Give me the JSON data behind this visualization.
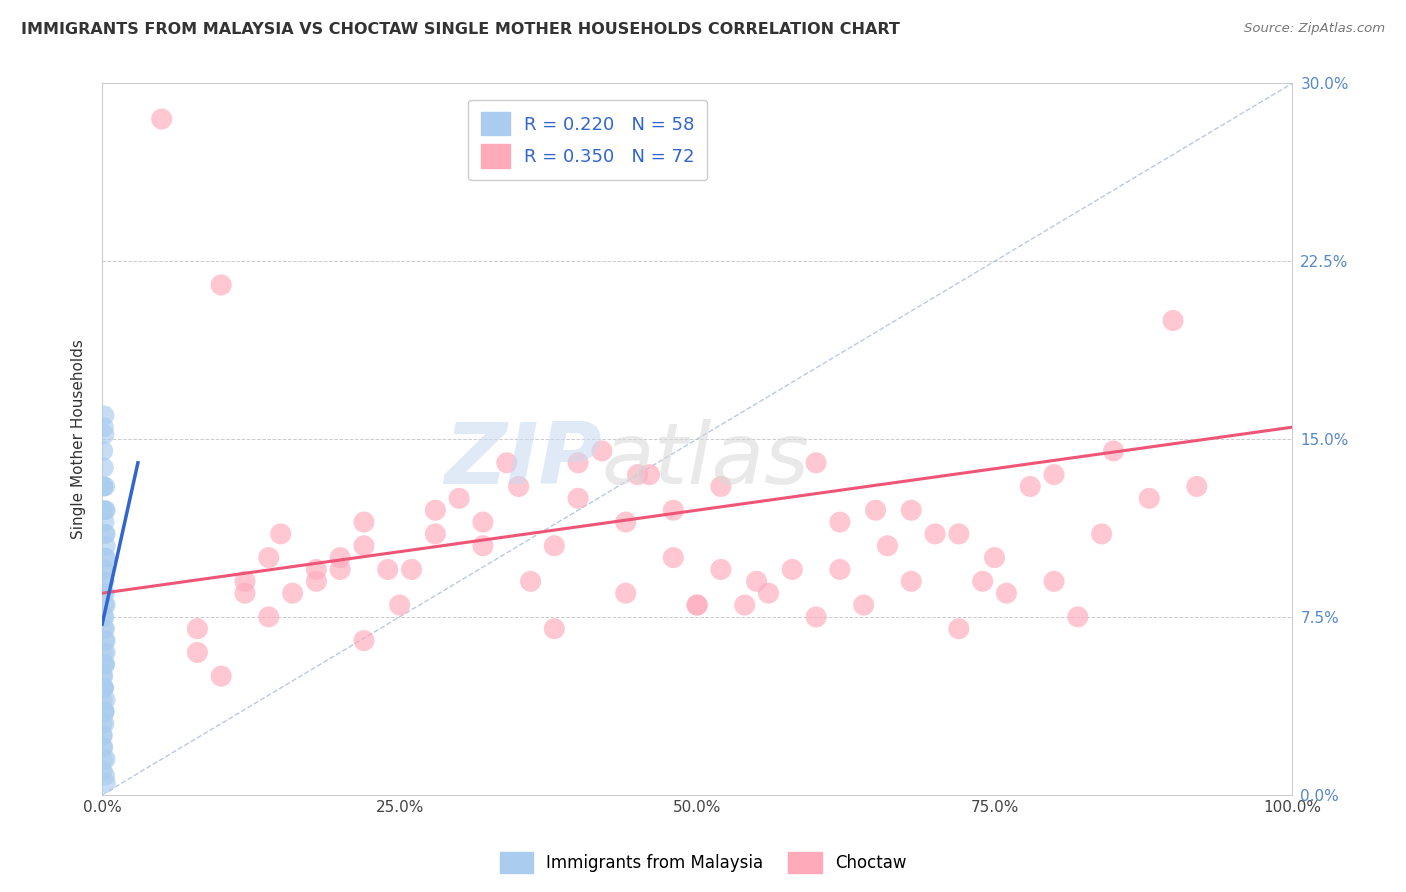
{
  "title": "IMMIGRANTS FROM MALAYSIA VS CHOCTAW SINGLE MOTHER HOUSEHOLDS CORRELATION CHART",
  "source": "Source: ZipAtlas.com",
  "xlabel": "",
  "ylabel": "Single Mother Households",
  "xlim": [
    0,
    100
  ],
  "ylim": [
    0,
    30
  ],
  "yticks": [
    0,
    7.5,
    15.0,
    22.5,
    30.0
  ],
  "xticks": [
    0,
    25,
    50,
    75,
    100
  ],
  "blue_R": 0.22,
  "blue_N": 58,
  "pink_R": 0.35,
  "pink_N": 72,
  "blue_label": "Immigrants from Malaysia",
  "pink_label": "Choctaw",
  "blue_color": "#aaccee",
  "pink_color": "#ffaabb",
  "blue_line_color": "#3366cc",
  "pink_line_color": "#ee5577",
  "watermark_zip": "ZIP",
  "watermark_atlas": "atlas",
  "blue_scatter_x": [
    0.1,
    0.15,
    0.2,
    0.25,
    0.3,
    0.1,
    0.2,
    0.15,
    0.3,
    0.25,
    0.1,
    0.2,
    0.15,
    0.25,
    0.3,
    0.05,
    0.1,
    0.2,
    0.15,
    0.25,
    0.3,
    0.05,
    0.1,
    0.2,
    0.15,
    0.25,
    0.3,
    0.05,
    0.1,
    0.2,
    0.15,
    0.25,
    0.3,
    0.05,
    0.1,
    0.2,
    0.15,
    0.25,
    0.3,
    0.05,
    0.1,
    0.2,
    0.15,
    0.25,
    0.3,
    0.05,
    0.1,
    0.2,
    0.15,
    0.25,
    0.3,
    0.05,
    0.1,
    0.2,
    0.15,
    0.25,
    0.3,
    0.05
  ],
  "blue_scatter_y": [
    14.5,
    13.8,
    15.2,
    12.0,
    10.5,
    13.0,
    11.5,
    9.5,
    10.0,
    11.0,
    8.5,
    9.0,
    7.0,
    6.5,
    8.0,
    5.0,
    4.5,
    3.5,
    6.0,
    5.5,
    4.0,
    3.0,
    7.5,
    16.0,
    15.5,
    13.0,
    12.0,
    2.5,
    5.5,
    8.0,
    9.5,
    7.0,
    6.0,
    4.0,
    5.0,
    3.0,
    4.5,
    8.5,
    6.5,
    2.0,
    1.5,
    7.5,
    9.0,
    10.0,
    11.0,
    12.0,
    13.0,
    3.5,
    4.5,
    5.5,
    0.5,
    1.0,
    2.0,
    3.5,
    4.5,
    0.8,
    1.5,
    2.5
  ],
  "pink_scatter_x": [
    5,
    8,
    12,
    18,
    22,
    15,
    28,
    32,
    10,
    20,
    25,
    35,
    40,
    14,
    18,
    22,
    30,
    45,
    50,
    55,
    60,
    65,
    70,
    75,
    80,
    42,
    48,
    52,
    58,
    62,
    38,
    44,
    68,
    72,
    78,
    85,
    90,
    12,
    16,
    20,
    24,
    28,
    32,
    36,
    40,
    44,
    48,
    52,
    56,
    60,
    64,
    68,
    72,
    76,
    80,
    84,
    88,
    92,
    8,
    14,
    26,
    34,
    46,
    54,
    66,
    74,
    82,
    10,
    22,
    38,
    50,
    62
  ],
  "pink_scatter_y": [
    28.5,
    7.0,
    8.5,
    9.0,
    10.5,
    11.0,
    12.0,
    11.5,
    21.5,
    9.5,
    8.0,
    13.0,
    14.0,
    10.0,
    9.5,
    11.5,
    12.5,
    13.5,
    8.0,
    9.0,
    14.0,
    12.0,
    11.0,
    10.0,
    13.5,
    14.5,
    12.0,
    13.0,
    9.5,
    11.5,
    10.5,
    8.5,
    12.0,
    11.0,
    13.0,
    14.5,
    20.0,
    9.0,
    8.5,
    10.0,
    9.5,
    11.0,
    10.5,
    9.0,
    12.5,
    11.5,
    10.0,
    9.5,
    8.5,
    7.5,
    8.0,
    9.0,
    7.0,
    8.5,
    9.0,
    11.0,
    12.5,
    13.0,
    6.0,
    7.5,
    9.5,
    14.0,
    13.5,
    8.0,
    10.5,
    9.0,
    7.5,
    5.0,
    6.5,
    7.0,
    8.0,
    9.5
  ],
  "blue_reg_x0": 0,
  "blue_reg_x1": 3.0,
  "blue_reg_y0": 7.2,
  "blue_reg_y1": 14.0,
  "pink_reg_x0": 0,
  "pink_reg_x1": 100,
  "pink_reg_y0": 8.5,
  "pink_reg_y1": 15.5,
  "diag_x0": 0,
  "diag_x1": 100,
  "diag_y0": 0,
  "diag_y1": 30
}
